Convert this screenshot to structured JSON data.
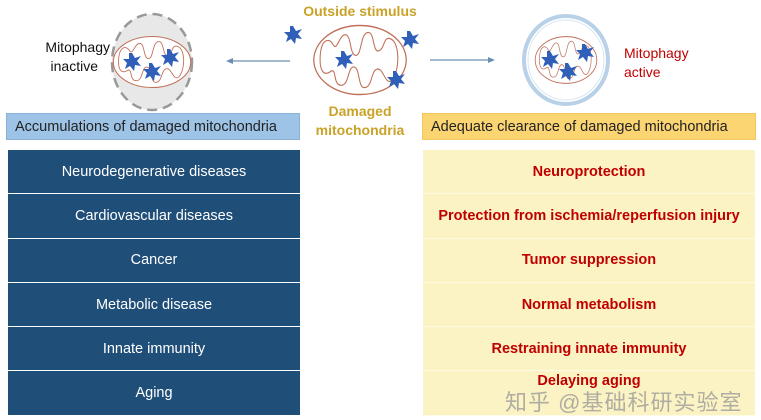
{
  "top": {
    "outside_stimulus": "Outside stimulus",
    "damaged": "Damaged",
    "mitochondria": "mitochondria",
    "inactive_line1": "Mitophagy",
    "inactive_line2": "inactive",
    "active_line1": "Mitophagy",
    "active_line2": "active"
  },
  "left": {
    "header": "Accumulations of damaged mitochondria",
    "items": [
      "Neurodegenerative diseases",
      "Cardiovascular diseases",
      "Cancer",
      "Metabolic disease",
      "Innate immunity",
      "Aging"
    ]
  },
  "right": {
    "header": "Adequate clearance of damaged mitochondria",
    "items": [
      "Neuroprotection",
      "Protection from ischemia/reperfusion injury",
      "Tumor suppression",
      "Normal metabolism",
      "Restraining innate immunity",
      "Delaying aging"
    ]
  },
  "watermark": "知乎 @基础科研实验室",
  "colors": {
    "dark_blue": "#1f4e79",
    "light_blue": "#9dc3e6",
    "orange": "#fcd573",
    "light_yellow": "#fbf3c4",
    "red": "#c00000",
    "gold": "#c9a227"
  }
}
